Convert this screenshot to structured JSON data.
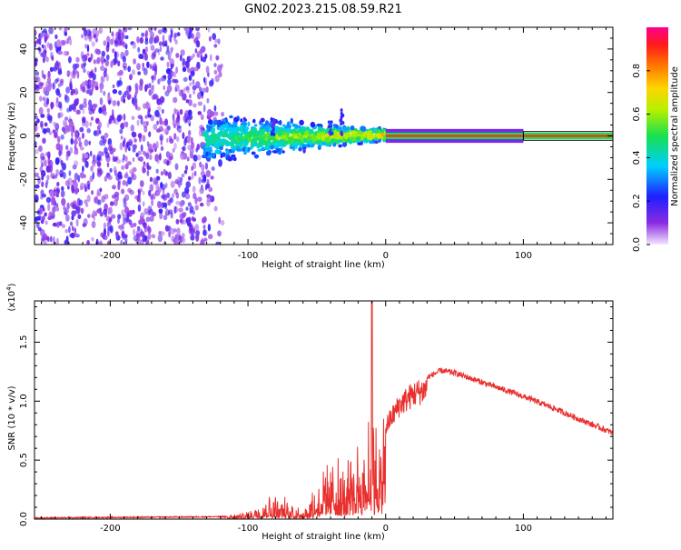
{
  "title": "GN02.2023.215.08.59.R21",
  "chart_data": [
    {
      "type": "heatmap",
      "title": "GN02.2023.215.08.59.R21",
      "xlabel": "Height of straight line (km)",
      "ylabel": "Frequency (Hz)",
      "xlim": [
        -255,
        165
      ],
      "ylim": [
        -50,
        50
      ],
      "xticks": [
        -200,
        -100,
        0,
        100
      ],
      "yticks": [
        -40,
        -20,
        0,
        20,
        40
      ],
      "colorbar": {
        "label": "Normalized spectral amplitude",
        "range": [
          0,
          1
        ],
        "ticks": [
          "0.0",
          "0.2",
          "0.4",
          "0.6",
          "0.8"
        ]
      },
      "regions": [
        {
          "name": "noise",
          "x": [
            -255,
            -118
          ],
          "freq": [
            -50,
            50
          ],
          "amplitude": 0.12
        },
        {
          "name": "scatter",
          "x": [
            -132,
            0
          ],
          "freq": [
            -9,
            12
          ],
          "amplitude": 0.4
        },
        {
          "name": "tone",
          "x": [
            0,
            165
          ],
          "freq": [
            -1.5,
            1.5
          ],
          "amplitude": 0.9
        }
      ]
    },
    {
      "type": "line",
      "xlabel": "Height of straight line (km)",
      "ylabel": "SNR (10 * v/v)",
      "yscale_label": "(x10",
      "yscale_exp": "4",
      "yscale_close": ")",
      "xlim": [
        -255,
        165
      ],
      "ylim": [
        0,
        1.85
      ],
      "xticks": [
        -200,
        -100,
        0,
        100
      ],
      "yticks": [
        0.0,
        0.5,
        1.0,
        1.5
      ],
      "ytick_labels": [
        "0.0",
        "0.5",
        "1.0",
        "1.5"
      ],
      "color": "#e8312e",
      "envelope": {
        "x": [
          -255,
          -115,
          -100,
          -90,
          -80,
          -70,
          -60,
          -50,
          -40,
          -30,
          -20,
          -15,
          -10,
          -5,
          0,
          10,
          20,
          30,
          40,
          50,
          60,
          80,
          100,
          120,
          140,
          165
        ],
        "y": [
          0.01,
          0.02,
          0.06,
          0.14,
          0.18,
          0.12,
          0.08,
          0.25,
          0.45,
          0.35,
          0.6,
          0.7,
          0.85,
          0.6,
          0.85,
          1.05,
          1.15,
          1.2,
          1.26,
          1.24,
          1.2,
          1.12,
          1.04,
          0.95,
          0.85,
          0.73
        ]
      },
      "peak": {
        "x": -10,
        "y": 1.85
      }
    }
  ]
}
